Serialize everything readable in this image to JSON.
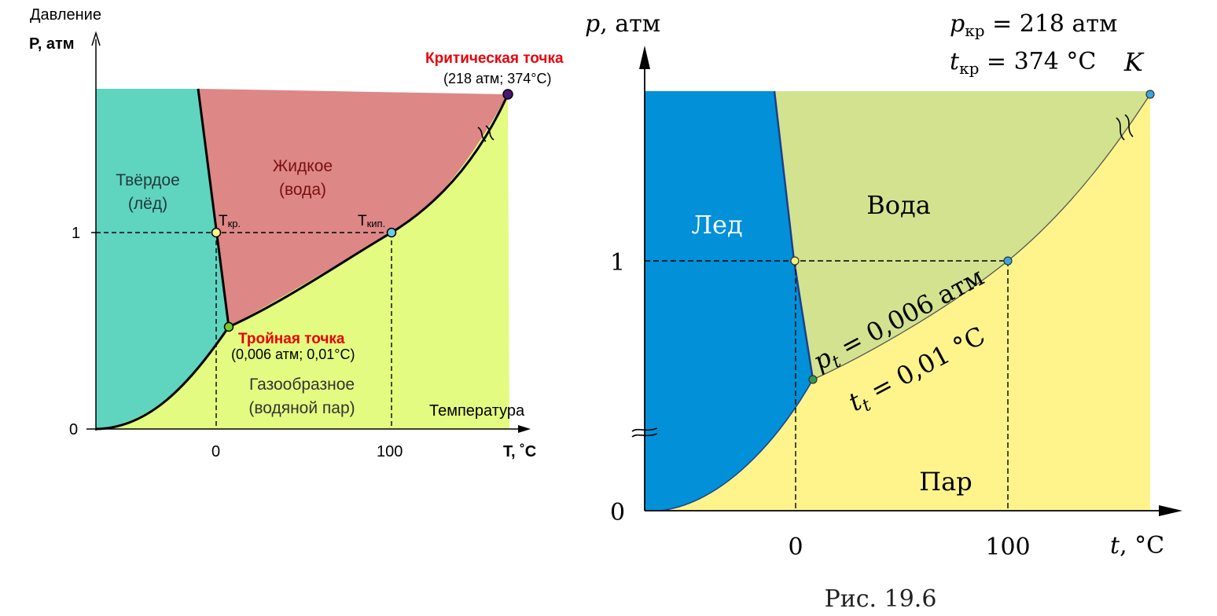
{
  "left_diagram": {
    "pressure_axis_title": "Давление",
    "pressure_axis_label": "P, атм",
    "temperature_axis_title": "Температура",
    "temperature_axis_label": "T, ˚C",
    "y_tick_1": "1",
    "y_tick_0": "0",
    "x_tick_0": "0",
    "x_tick_100": "100",
    "solid_region_line1": "Твёрдое",
    "solid_region_line2": "(лёд)",
    "liquid_region_line1": "Жидкое",
    "liquid_region_line2": "(вода)",
    "gas_region_line1": "Газообразное",
    "gas_region_line2": "(водяной пар)",
    "melting_point_main": "Т",
    "melting_point_sub": "кр.",
    "boiling_point_main": "Т",
    "boiling_point_sub": "кип.",
    "triple_point_title": "Тройная точка",
    "triple_point_values": "(0,006 атм; 0,01°C)",
    "critical_point_title": "Критическая точка",
    "critical_point_values": "(218 атм; 374°C)",
    "colors": {
      "solid": "#5fd4bf",
      "liquid": "#dd8787",
      "gas": "#e3fb80",
      "accent_red": "#e8000b",
      "liquid_label": "#7a0f0f",
      "melting_point": "#fbf48e",
      "boiling_point": "#6bcbe6",
      "triple_point": "#73cc2c",
      "critical_point": "#4a1577"
    }
  },
  "right_diagram": {
    "p_axis_var": "p",
    "p_axis_unit": ", атм",
    "t_axis_var": "t",
    "t_axis_unit": ", °C",
    "p_critical_var": "p",
    "p_critical_sub": "кр",
    "p_critical_value": " = 218 атм",
    "t_critical_var": "t",
    "t_critical_sub": "кр",
    "t_critical_value": " = 374 °C",
    "critical_point_label": "K",
    "y_tick_1": "1",
    "y_tick_0": "0",
    "x_tick_0": "0",
    "x_tick_100": "100",
    "ice_label": "Лед",
    "water_label": "Вода",
    "steam_label": "Пар",
    "triple_pressure_var": "p",
    "triple_pressure_sub": "t",
    "triple_pressure_value": " = 0,006 атм",
    "triple_temperature_var": "t",
    "triple_temperature_sub": "t",
    "triple_temperature_value": " = 0,01 °C",
    "figure_caption": "Рис. 19.6",
    "colors": {
      "ice": "#0290d8",
      "water": "#d3e28f",
      "steam": "#fff48c",
      "melting_point": "#f5f07a",
      "boiling_point": "#3aa6dd",
      "triple_point": "#2d9c52",
      "critical_point": "#3aa6dd"
    }
  }
}
